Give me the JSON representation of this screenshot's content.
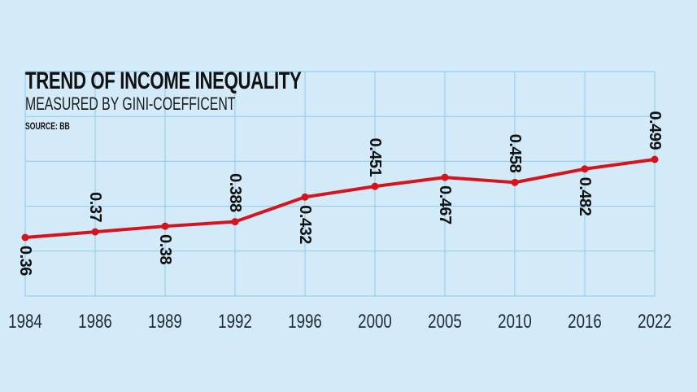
{
  "header": {
    "title": "TREND OF INCOME INEQUALITY",
    "subtitle": "MEASURED BY GINI-COEFFICENT",
    "source": "SOURCE: BB"
  },
  "colors": {
    "background": "#d3eaf9",
    "grid": "#8ecbe8",
    "line": "#d7141b",
    "label_text": "#111111",
    "axis_text": "#1f2a33"
  },
  "chart_data": {
    "type": "line",
    "title": "TREND OF INCOME INEQUALITY",
    "subtitle": "MEASURED BY GINI-COEFFICENT",
    "source": "SOURCE: BB",
    "xlabel": "",
    "ylabel": "",
    "categories": [
      "1984",
      "1986",
      "1989",
      "1992",
      "1996",
      "2000",
      "2005",
      "2010",
      "2016",
      "2022"
    ],
    "series": [
      {
        "name": "Gini coefficient",
        "values": [
          0.36,
          0.37,
          0.38,
          0.388,
          0.432,
          0.451,
          0.467,
          0.458,
          0.482,
          0.499
        ]
      }
    ],
    "point_labels": [
      "0.36",
      "0.37",
      "0.38",
      "0.388",
      "0.432",
      "0.451",
      "0.467",
      "0.458",
      "0.482",
      "0.499"
    ],
    "label_positions": [
      "below",
      "above",
      "below",
      "above",
      "below",
      "above",
      "below",
      "above",
      "below",
      "above"
    ],
    "label_rotation_deg": 90,
    "grid": true,
    "legend": "none",
    "y_axis_visible": false
  }
}
